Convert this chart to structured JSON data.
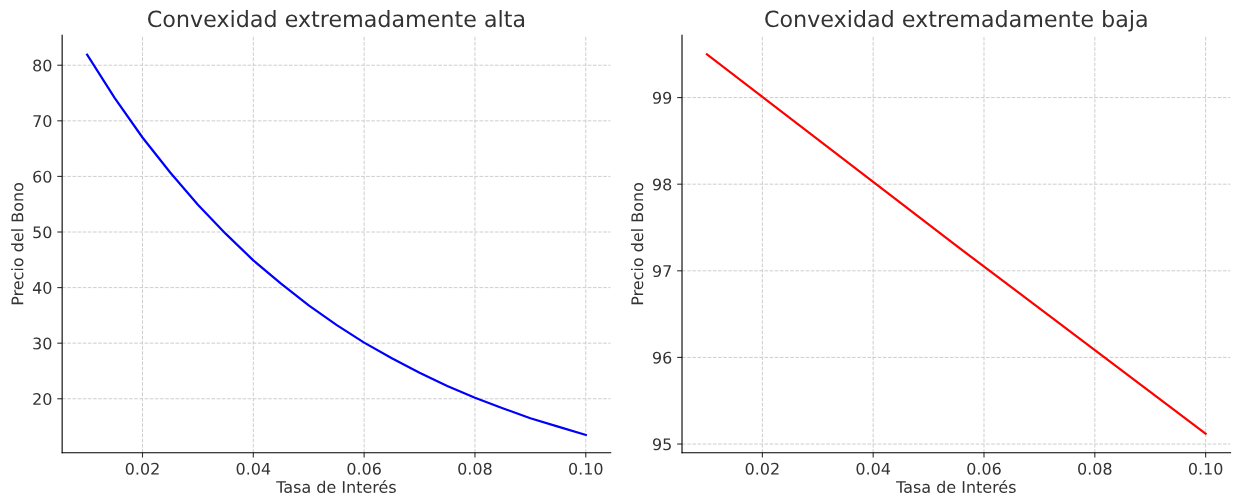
{
  "chart_data": [
    {
      "type": "line",
      "title": "Convexidad extremadamente alta",
      "xlabel": "Tasa de Interés",
      "ylabel": "Precio del Bono",
      "x": [
        0.01,
        0.015,
        0.02,
        0.025,
        0.03,
        0.035,
        0.04,
        0.045,
        0.05,
        0.055,
        0.06,
        0.065,
        0.07,
        0.075,
        0.08,
        0.085,
        0.09,
        0.095,
        0.1
      ],
      "series": [
        {
          "color": "#0000ff",
          "values": [
            81.9,
            74.1,
            67.0,
            60.7,
            54.9,
            49.7,
            44.9,
            40.7,
            36.8,
            33.3,
            30.1,
            27.3,
            24.7,
            22.3,
            20.2,
            18.3,
            16.5,
            15.0,
            13.5
          ]
        }
      ],
      "xlim": [
        0.0055,
        0.1045
      ],
      "ylim": [
        10.3,
        85.4
      ],
      "xticks": [
        {
          "value": 0.02,
          "label": "0.02"
        },
        {
          "value": 0.04,
          "label": "0.04"
        },
        {
          "value": 0.06,
          "label": "0.06"
        },
        {
          "value": 0.08,
          "label": "0.08"
        },
        {
          "value": 0.1,
          "label": "0.10"
        }
      ],
      "yticks": [
        20,
        30,
        40,
        50,
        60,
        70,
        80
      ],
      "grid": true,
      "line_style": "solid"
    },
    {
      "type": "line",
      "title": "Convexidad extremadamente baja",
      "xlabel": "Tasa de Interés",
      "ylabel": "Precio del Bono",
      "x": [
        0.01,
        0.055,
        0.1
      ],
      "series": [
        {
          "color": "#ff0000",
          "values": [
            99.5,
            97.29,
            95.12
          ]
        }
      ],
      "xlim": [
        0.0055,
        0.1045
      ],
      "ylim": [
        94.9,
        99.72
      ],
      "xticks": [
        {
          "value": 0.02,
          "label": "0.02"
        },
        {
          "value": 0.04,
          "label": "0.04"
        },
        {
          "value": 0.06,
          "label": "0.06"
        },
        {
          "value": 0.08,
          "label": "0.08"
        },
        {
          "value": 0.1,
          "label": "0.10"
        }
      ],
      "yticks": [
        95,
        96,
        97,
        98,
        99
      ],
      "grid": true,
      "line_style": "solid"
    }
  ]
}
